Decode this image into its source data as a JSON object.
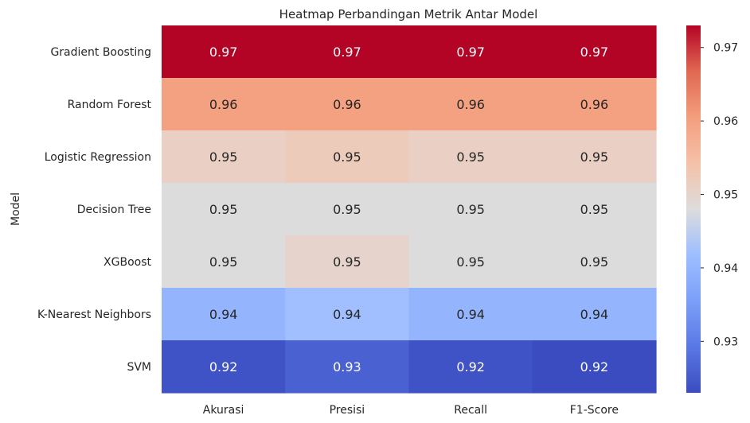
{
  "chart_data": {
    "type": "heatmap",
    "title": "Heatmap Perbandingan Metrik Antar Model",
    "ylabel": "Model",
    "xlabel": "",
    "columns": [
      "Akurasi",
      "Presisi",
      "Recall",
      "F1-Score"
    ],
    "rows": [
      "Gradient Boosting",
      "Random Forest",
      "Logistic Regression",
      "Decision Tree",
      "XGBoost",
      "K-Nearest Neighbors",
      "SVM"
    ],
    "values": [
      [
        0.973,
        0.973,
        0.973,
        0.973
      ],
      [
        0.96,
        0.96,
        0.96,
        0.96
      ],
      [
        0.951,
        0.952,
        0.951,
        0.951
      ],
      [
        0.948,
        0.948,
        0.948,
        0.948
      ],
      [
        0.948,
        0.95,
        0.948,
        0.948
      ],
      [
        0.94,
        0.942,
        0.94,
        0.94
      ],
      [
        0.924,
        0.926,
        0.924,
        0.923
      ]
    ],
    "cell_labels": [
      [
        "0.97",
        "0.97",
        "0.97",
        "0.97"
      ],
      [
        "0.96",
        "0.96",
        "0.96",
        "0.96"
      ],
      [
        "0.95",
        "0.95",
        "0.95",
        "0.95"
      ],
      [
        "0.95",
        "0.95",
        "0.95",
        "0.95"
      ],
      [
        "0.95",
        "0.95",
        "0.95",
        "0.95"
      ],
      [
        "0.94",
        "0.94",
        "0.94",
        "0.94"
      ],
      [
        "0.92",
        "0.93",
        "0.92",
        "0.92"
      ]
    ],
    "colormap": "coolwarm",
    "color_range": [
      0.923,
      0.973
    ],
    "colorbar_ticks": [
      {
        "value": 0.93,
        "label": "0.93"
      },
      {
        "value": 0.94,
        "label": "0.94"
      },
      {
        "value": 0.95,
        "label": "0.95"
      },
      {
        "value": 0.96,
        "label": "0.96"
      },
      {
        "value": 0.97,
        "label": "0.97"
      }
    ],
    "colorbar_placement": "right",
    "grid": false
  }
}
